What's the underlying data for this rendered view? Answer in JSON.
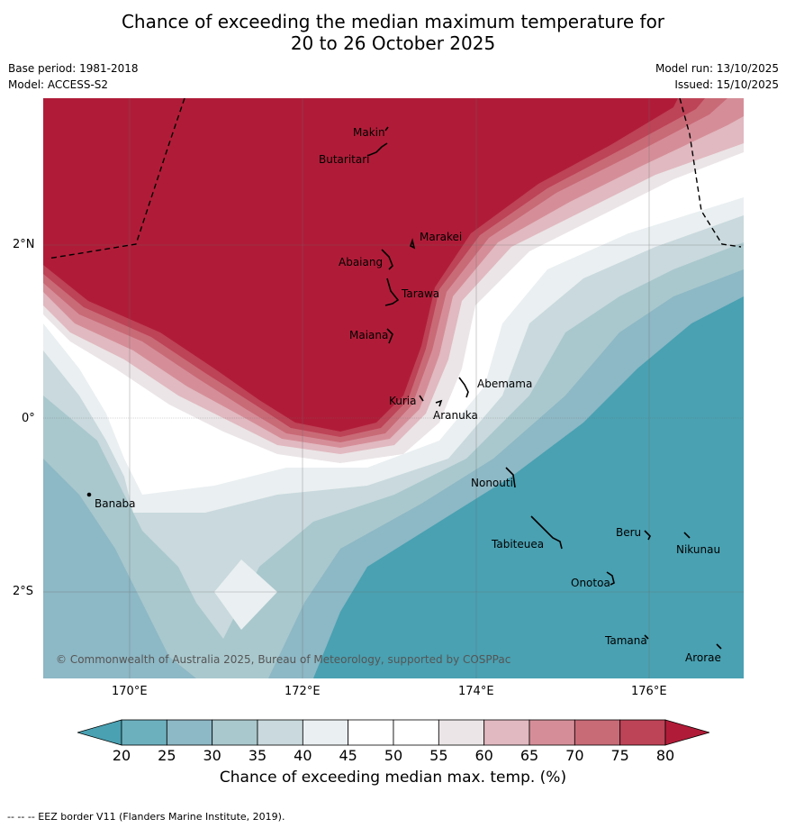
{
  "title": {
    "line1": "Chance of exceeding the median maximum temperature for",
    "line2": "20 to 26 October 2025"
  },
  "meta": {
    "base_period": "Base period: 1981-2018",
    "model": "Model: ACCESS-S2",
    "model_run": "Model run: 13/10/2025",
    "issued": "Issued: 15/10/2025"
  },
  "map": {
    "lon_labels": [
      "170°E",
      "172°E",
      "174°E",
      "176°E"
    ],
    "lat_labels": [
      "2°N",
      "0°",
      "2°S"
    ],
    "places": [
      "Makin",
      "Butaritari",
      "Marakei",
      "Abaiang",
      "Tarawa",
      "Maiana",
      "Abemama",
      "Kuria",
      "Aranuka",
      "Banaba",
      "Nonouti",
      "Beru",
      "Nikunau",
      "Tabiteuea",
      "Onotoa",
      "Tamana",
      "Arorae"
    ],
    "copyright": "© Commonwealth of Australia 2025, Bureau of Meteorology, supported by COSPPac"
  },
  "colorbar": {
    "ticks": [
      "20",
      "25",
      "30",
      "35",
      "40",
      "45",
      "50",
      "55",
      "60",
      "65",
      "70",
      "75",
      "80"
    ],
    "label": "Chance of exceeding median max. temp. (%)",
    "colors": [
      "#49a1b2",
      "#6cb0be",
      "#8db8c5",
      "#a9c8cd",
      "#c9d9dd",
      "#eaeff1",
      "#ffffff",
      "#ffffff",
      "#ebe5e7",
      "#e1b9c0",
      "#d58e98",
      "#c96a77",
      "#bd4356",
      "#b01c38"
    ]
  },
  "footnote": "--  --  -- EEZ border V11 (Flanders Marine Institute, 2019)."
}
